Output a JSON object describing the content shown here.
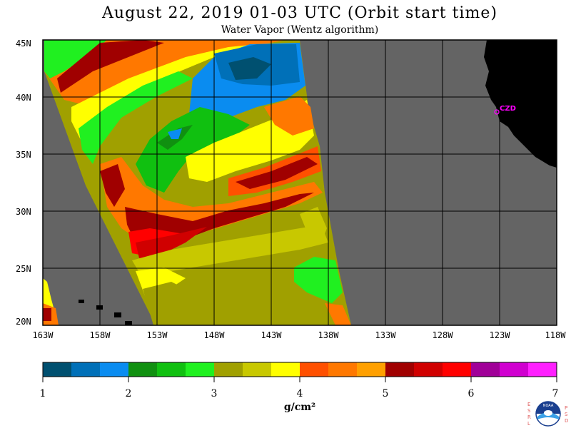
{
  "title": "August 22, 2019  01-03 UTC  (Orbit start time)",
  "subtitle": "Water Vapor (Wentz algorithm)",
  "station": "CZD",
  "unit": "g/cm²",
  "chart_data": {
    "type": "heatmap",
    "x_ticks": [
      "163W",
      "158W",
      "153W",
      "148W",
      "143W",
      "138W",
      "133W",
      "128W",
      "123W",
      "118W"
    ],
    "y_ticks": [
      "45N",
      "40N",
      "35N",
      "30N",
      "25N",
      "20N"
    ],
    "colorbar": {
      "labels": [
        "1",
        "2",
        "3",
        "4",
        "5",
        "6",
        "7"
      ],
      "range": [
        1,
        7
      ],
      "colors": [
        "#005070",
        "#0070b8",
        "#0a8cf0",
        "#109010",
        "#10c010",
        "#20f020",
        "#a0a000",
        "#c8c800",
        "#ffff00",
        "#ff5000",
        "#ff7800",
        "#ffa000",
        "#a00000",
        "#d00000",
        "#ff0000",
        "#a00098",
        "#d000d0",
        "#ff20ff"
      ]
    },
    "colors": {
      "land": "#000000",
      "no_data": "#646464",
      "grid": "#000000",
      "station": "#ff00ff"
    }
  },
  "logo": {
    "side_left": "ESRL",
    "side_right": "PSD",
    "center": "NOAA"
  }
}
